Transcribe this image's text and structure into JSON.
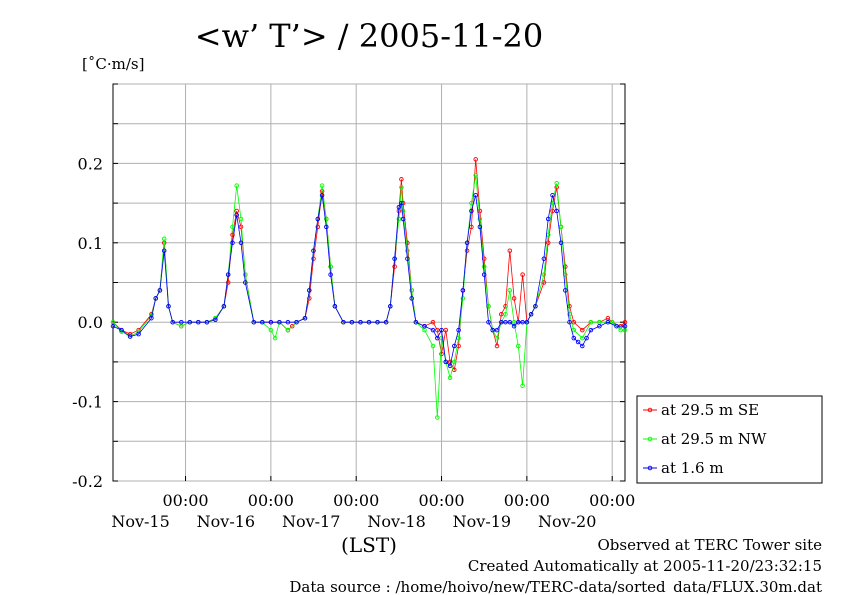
{
  "chart_data": {
    "type": "line",
    "title": "<w’ T’> / 2005-11-20",
    "ylabel": "[˚C·m/s]",
    "xlabel": "(LST)",
    "ylim": [
      -0.2,
      0.3
    ],
    "xlim": [
      -0.35,
      5.65
    ],
    "y_ticks": [
      {
        "value": 0.2,
        "label": "0.2"
      },
      {
        "value": 0.1,
        "label": "0.1"
      },
      {
        "value": 0.0,
        "label": "0.0"
      },
      {
        "value": -0.1,
        "label": "-0.1"
      },
      {
        "value": -0.2,
        "label": "-0.2"
      }
    ],
    "x_ticks": [
      {
        "value": 0.5,
        "time": "00:00",
        "date": "Nov-15"
      },
      {
        "value": 1.5,
        "time": "00:00",
        "date": "Nov-16"
      },
      {
        "value": 2.5,
        "time": "00:00",
        "date": "Nov-17"
      },
      {
        "value": 3.5,
        "time": "00:00",
        "date": "Nov-18"
      },
      {
        "value": 4.5,
        "time": "00:00",
        "date": "Nov-19"
      },
      {
        "value": 5.5,
        "time": "00:00",
        "date": "Nov-20"
      }
    ],
    "x_units": "days (Nov-15 00:00 = 0.5)",
    "grid": true,
    "legend_position": "bottom-right",
    "series": [
      {
        "name": "at 29.5 m SE",
        "color": "#ff0000",
        "points": [
          [
            -0.35,
            0.0
          ],
          [
            -0.25,
            -0.01
          ],
          [
            -0.15,
            -0.015
          ],
          [
            -0.05,
            -0.01
          ],
          [
            0.1,
            0.01
          ],
          [
            0.15,
            0.03
          ],
          [
            0.2,
            0.04
          ],
          [
            0.25,
            0.1
          ],
          [
            0.3,
            0.02
          ],
          [
            0.35,
            0.0
          ],
          [
            0.45,
            -0.005
          ],
          [
            0.55,
            0.0
          ],
          [
            0.65,
            0.0
          ],
          [
            0.75,
            0.0
          ],
          [
            0.85,
            0.005
          ],
          [
            0.95,
            0.02
          ],
          [
            1.0,
            0.05
          ],
          [
            1.05,
            0.11
          ],
          [
            1.1,
            0.14
          ],
          [
            1.15,
            0.12
          ],
          [
            1.2,
            0.06
          ],
          [
            1.3,
            0.0
          ],
          [
            1.4,
            0.0
          ],
          [
            1.5,
            0.0
          ],
          [
            1.6,
            0.0
          ],
          [
            1.7,
            -0.01
          ],
          [
            1.75,
            -0.005
          ],
          [
            1.8,
            0.0
          ],
          [
            1.9,
            0.005
          ],
          [
            1.95,
            0.03
          ],
          [
            2.0,
            0.08
          ],
          [
            2.05,
            0.12
          ],
          [
            2.1,
            0.165
          ],
          [
            2.15,
            0.13
          ],
          [
            2.2,
            0.07
          ],
          [
            2.25,
            0.02
          ],
          [
            2.35,
            0.0
          ],
          [
            2.45,
            0.0
          ],
          [
            2.55,
            0.0
          ],
          [
            2.65,
            0.0
          ],
          [
            2.75,
            0.0
          ],
          [
            2.85,
            0.0
          ],
          [
            2.9,
            0.02
          ],
          [
            2.95,
            0.07
          ],
          [
            3.0,
            0.14
          ],
          [
            3.03,
            0.18
          ],
          [
            3.05,
            0.15
          ],
          [
            3.1,
            0.1
          ],
          [
            3.15,
            0.04
          ],
          [
            3.2,
            0.0
          ],
          [
            3.3,
            -0.005
          ],
          [
            3.4,
            0.0
          ],
          [
            3.45,
            -0.01
          ],
          [
            3.5,
            -0.04
          ],
          [
            3.55,
            -0.01
          ],
          [
            3.6,
            -0.05
          ],
          [
            3.65,
            -0.06
          ],
          [
            3.7,
            -0.03
          ],
          [
            3.75,
            0.04
          ],
          [
            3.8,
            0.09
          ],
          [
            3.85,
            0.12
          ],
          [
            3.9,
            0.205
          ],
          [
            3.95,
            0.14
          ],
          [
            4.0,
            0.08
          ],
          [
            4.05,
            0.02
          ],
          [
            4.1,
            -0.01
          ],
          [
            4.15,
            -0.03
          ],
          [
            4.2,
            0.01
          ],
          [
            4.25,
            0.02
          ],
          [
            4.3,
            0.09
          ],
          [
            4.35,
            0.03
          ],
          [
            4.4,
            0.0
          ],
          [
            4.45,
            0.06
          ],
          [
            4.5,
            0.0
          ],
          [
            4.55,
            0.01
          ],
          [
            4.6,
            0.02
          ],
          [
            4.7,
            0.05
          ],
          [
            4.75,
            0.1
          ],
          [
            4.8,
            0.14
          ],
          [
            4.85,
            0.17
          ],
          [
            4.9,
            0.12
          ],
          [
            4.95,
            0.07
          ],
          [
            5.0,
            0.02
          ],
          [
            5.05,
            0.0
          ],
          [
            5.15,
            -0.01
          ],
          [
            5.25,
            0.0
          ],
          [
            5.35,
            0.0
          ],
          [
            5.45,
            0.005
          ],
          [
            5.5,
            0.0
          ],
          [
            5.6,
            -0.005
          ],
          [
            5.65,
            0.0
          ]
        ]
      },
      {
        "name": "at 29.5 m NW",
        "color": "#00ff00",
        "points": [
          [
            -0.35,
            0.0
          ],
          [
            -0.25,
            -0.012
          ],
          [
            -0.15,
            -0.018
          ],
          [
            -0.05,
            -0.012
          ],
          [
            0.1,
            0.008
          ],
          [
            0.15,
            0.03
          ],
          [
            0.2,
            0.04
          ],
          [
            0.25,
            0.105
          ],
          [
            0.3,
            0.02
          ],
          [
            0.35,
            0.0
          ],
          [
            0.45,
            -0.005
          ],
          [
            0.55,
            0.0
          ],
          [
            0.65,
            0.0
          ],
          [
            0.75,
            0.0
          ],
          [
            0.85,
            0.005
          ],
          [
            0.95,
            0.02
          ],
          [
            1.0,
            0.06
          ],
          [
            1.05,
            0.12
          ],
          [
            1.1,
            0.172
          ],
          [
            1.15,
            0.13
          ],
          [
            1.2,
            0.06
          ],
          [
            1.3,
            0.0
          ],
          [
            1.4,
            0.0
          ],
          [
            1.5,
            -0.01
          ],
          [
            1.55,
            -0.02
          ],
          [
            1.6,
            0.0
          ],
          [
            1.7,
            -0.01
          ],
          [
            1.8,
            0.0
          ],
          [
            1.9,
            0.005
          ],
          [
            1.95,
            0.04
          ],
          [
            2.0,
            0.09
          ],
          [
            2.05,
            0.13
          ],
          [
            2.1,
            0.172
          ],
          [
            2.15,
            0.13
          ],
          [
            2.2,
            0.07
          ],
          [
            2.25,
            0.02
          ],
          [
            2.35,
            0.0
          ],
          [
            2.45,
            0.0
          ],
          [
            2.55,
            0.0
          ],
          [
            2.65,
            0.0
          ],
          [
            2.75,
            0.0
          ],
          [
            2.85,
            0.0
          ],
          [
            2.9,
            0.02
          ],
          [
            2.95,
            0.08
          ],
          [
            3.0,
            0.13
          ],
          [
            3.03,
            0.17
          ],
          [
            3.05,
            0.14
          ],
          [
            3.1,
            0.09
          ],
          [
            3.15,
            0.04
          ],
          [
            3.2,
            0.0
          ],
          [
            3.3,
            -0.01
          ],
          [
            3.4,
            -0.03
          ],
          [
            3.45,
            -0.12
          ],
          [
            3.5,
            -0.02
          ],
          [
            3.55,
            -0.05
          ],
          [
            3.6,
            -0.07
          ],
          [
            3.65,
            -0.05
          ],
          [
            3.7,
            -0.02
          ],
          [
            3.75,
            0.03
          ],
          [
            3.8,
            0.1
          ],
          [
            3.85,
            0.15
          ],
          [
            3.9,
            0.185
          ],
          [
            3.95,
            0.13
          ],
          [
            4.0,
            0.07
          ],
          [
            4.05,
            0.02
          ],
          [
            4.1,
            -0.01
          ],
          [
            4.15,
            -0.02
          ],
          [
            4.2,
            0.0
          ],
          [
            4.25,
            0.01
          ],
          [
            4.3,
            0.04
          ],
          [
            4.35,
            0.0
          ],
          [
            4.4,
            -0.03
          ],
          [
            4.45,
            -0.08
          ],
          [
            4.5,
            0.0
          ],
          [
            4.55,
            0.01
          ],
          [
            4.6,
            0.02
          ],
          [
            4.7,
            0.06
          ],
          [
            4.75,
            0.11
          ],
          [
            4.8,
            0.15
          ],
          [
            4.85,
            0.175
          ],
          [
            4.9,
            0.12
          ],
          [
            4.95,
            0.06
          ],
          [
            5.0,
            0.01
          ],
          [
            5.05,
            -0.01
          ],
          [
            5.15,
            -0.02
          ],
          [
            5.25,
            0.0
          ],
          [
            5.35,
            0.0
          ],
          [
            5.45,
            0.0
          ],
          [
            5.5,
            0.0
          ],
          [
            5.6,
            -0.01
          ],
          [
            5.65,
            -0.01
          ]
        ]
      },
      {
        "name": "at 1.6 m",
        "color": "#0000ff",
        "points": [
          [
            -0.35,
            -0.005
          ],
          [
            -0.25,
            -0.01
          ],
          [
            -0.15,
            -0.018
          ],
          [
            -0.05,
            -0.015
          ],
          [
            0.1,
            0.005
          ],
          [
            0.15,
            0.03
          ],
          [
            0.2,
            0.04
          ],
          [
            0.25,
            0.09
          ],
          [
            0.3,
            0.02
          ],
          [
            0.35,
            0.0
          ],
          [
            0.45,
            0.0
          ],
          [
            0.55,
            0.0
          ],
          [
            0.65,
            0.0
          ],
          [
            0.75,
            0.0
          ],
          [
            0.85,
            0.003
          ],
          [
            0.95,
            0.02
          ],
          [
            1.0,
            0.06
          ],
          [
            1.05,
            0.1
          ],
          [
            1.1,
            0.135
          ],
          [
            1.15,
            0.1
          ],
          [
            1.2,
            0.05
          ],
          [
            1.3,
            0.0
          ],
          [
            1.4,
            0.0
          ],
          [
            1.5,
            0.0
          ],
          [
            1.6,
            0.0
          ],
          [
            1.7,
            0.0
          ],
          [
            1.8,
            0.0
          ],
          [
            1.9,
            0.005
          ],
          [
            1.95,
            0.04
          ],
          [
            2.0,
            0.09
          ],
          [
            2.05,
            0.13
          ],
          [
            2.1,
            0.16
          ],
          [
            2.15,
            0.12
          ],
          [
            2.2,
            0.06
          ],
          [
            2.25,
            0.02
          ],
          [
            2.35,
            0.0
          ],
          [
            2.45,
            0.0
          ],
          [
            2.55,
            0.0
          ],
          [
            2.65,
            0.0
          ],
          [
            2.75,
            0.0
          ],
          [
            2.85,
            0.0
          ],
          [
            2.9,
            0.02
          ],
          [
            2.95,
            0.08
          ],
          [
            3.0,
            0.145
          ],
          [
            3.03,
            0.15
          ],
          [
            3.05,
            0.13
          ],
          [
            3.1,
            0.08
          ],
          [
            3.15,
            0.03
          ],
          [
            3.2,
            0.0
          ],
          [
            3.3,
            -0.005
          ],
          [
            3.4,
            -0.01
          ],
          [
            3.45,
            -0.02
          ],
          [
            3.5,
            -0.01
          ],
          [
            3.55,
            -0.05
          ],
          [
            3.6,
            -0.055
          ],
          [
            3.65,
            -0.03
          ],
          [
            3.7,
            -0.01
          ],
          [
            3.75,
            0.04
          ],
          [
            3.8,
            0.1
          ],
          [
            3.85,
            0.14
          ],
          [
            3.9,
            0.16
          ],
          [
            3.95,
            0.12
          ],
          [
            4.0,
            0.06
          ],
          [
            4.05,
            0.0
          ],
          [
            4.1,
            -0.01
          ],
          [
            4.15,
            -0.01
          ],
          [
            4.2,
            0.0
          ],
          [
            4.25,
            0.0
          ],
          [
            4.3,
            0.0
          ],
          [
            4.35,
            -0.005
          ],
          [
            4.4,
            0.0
          ],
          [
            4.45,
            0.0
          ],
          [
            4.5,
            0.0
          ],
          [
            4.55,
            0.01
          ],
          [
            4.6,
            0.02
          ],
          [
            4.7,
            0.08
          ],
          [
            4.75,
            0.13
          ],
          [
            4.8,
            0.16
          ],
          [
            4.85,
            0.14
          ],
          [
            4.9,
            0.1
          ],
          [
            4.95,
            0.04
          ],
          [
            5.0,
            0.0
          ],
          [
            5.05,
            -0.02
          ],
          [
            5.1,
            -0.025
          ],
          [
            5.15,
            -0.03
          ],
          [
            5.2,
            -0.02
          ],
          [
            5.25,
            -0.01
          ],
          [
            5.35,
            -0.005
          ],
          [
            5.45,
            0.0
          ],
          [
            5.55,
            -0.005
          ],
          [
            5.65,
            -0.005
          ]
        ]
      }
    ],
    "footer": [
      "Observed at TERC Tower site",
      "Created Automatically at 2005-11-20/23:32:15",
      "Data source : /home/hoivo/new/TERC-data/sorted_data/FLUX.30m.dat"
    ]
  }
}
